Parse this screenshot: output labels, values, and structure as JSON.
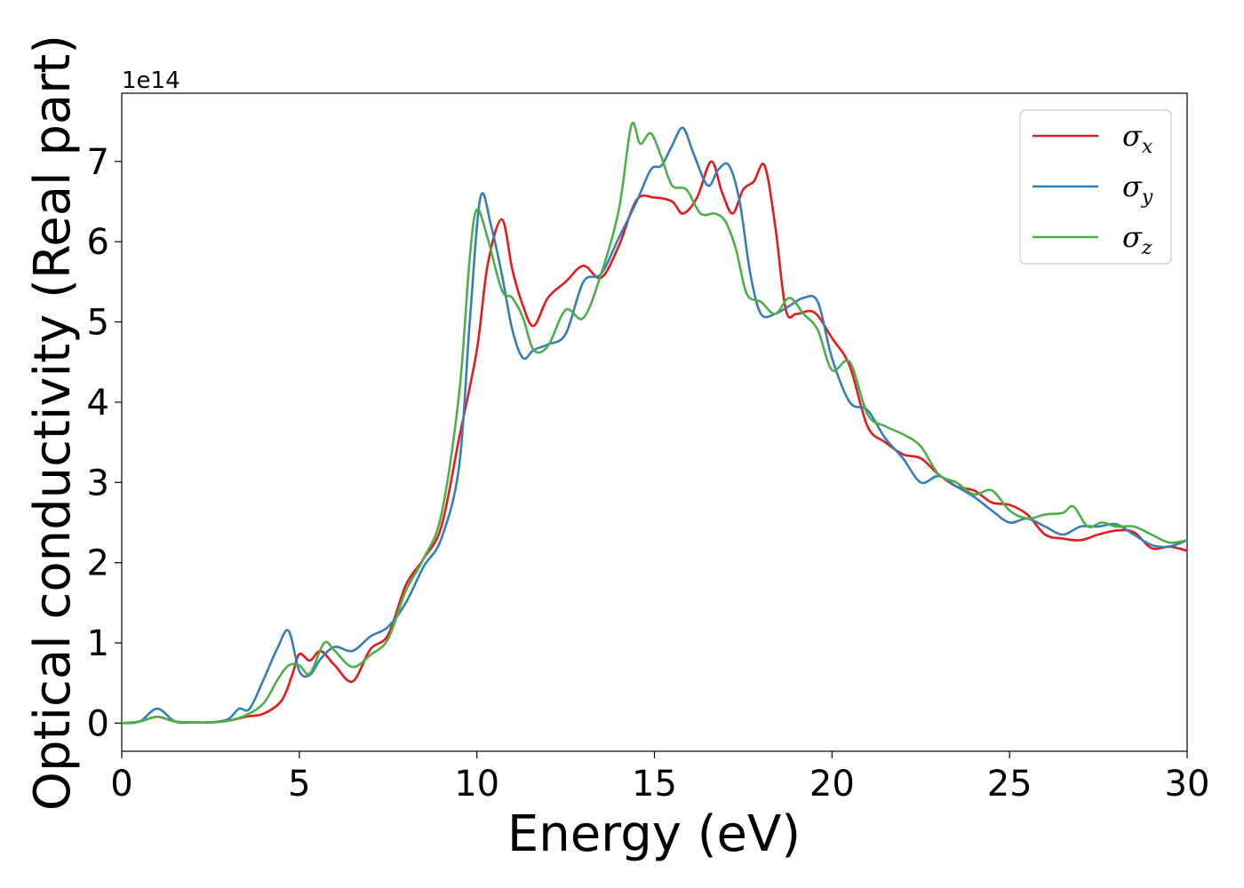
{
  "chart_data": {
    "type": "line",
    "xlabel": "Energy (eV)",
    "ylabel": "Optical conductivity (Real part)",
    "y_offset_label": "1e14",
    "xlim": [
      0,
      30
    ],
    "ylim": [
      -0.35,
      7.85
    ],
    "y_scale": 100000000000000.0,
    "x_ticks": [
      0,
      5,
      10,
      15,
      20,
      25,
      30
    ],
    "y_ticks": [
      0,
      1,
      2,
      3,
      4,
      5,
      6,
      7
    ],
    "grid": false,
    "legend_position": "top-right",
    "series": [
      {
        "name": "σx",
        "legend_symbol": "σ",
        "legend_subscript": "x",
        "color": "#e41a1c",
        "x": [
          0,
          0.5,
          1.0,
          1.5,
          2.0,
          2.5,
          3.0,
          3.5,
          4.0,
          4.5,
          4.8,
          5.0,
          5.3,
          5.6,
          6.0,
          6.5,
          7.0,
          7.5,
          8.0,
          8.5,
          9.0,
          9.5,
          10.0,
          10.3,
          10.7,
          11.0,
          11.3,
          11.6,
          12.0,
          12.5,
          13.0,
          13.5,
          14.0,
          14.5,
          15.0,
          15.5,
          15.8,
          16.2,
          16.6,
          16.9,
          17.2,
          17.5,
          17.8,
          18.1,
          18.4,
          18.7,
          19.0,
          19.5,
          20.0,
          20.5,
          21.0,
          21.5,
          22.0,
          22.5,
          23.0,
          23.5,
          24.0,
          24.5,
          25.0,
          25.5,
          26.0,
          26.5,
          27.0,
          27.5,
          28.0,
          28.5,
          29.0,
          29.5,
          30.0
        ],
        "values": [
          0.0,
          0.02,
          0.08,
          0.02,
          0.01,
          0.01,
          0.03,
          0.08,
          0.12,
          0.28,
          0.6,
          0.86,
          0.78,
          0.9,
          0.72,
          0.52,
          0.92,
          1.1,
          1.72,
          2.05,
          2.45,
          3.55,
          4.65,
          5.7,
          6.28,
          5.65,
          5.2,
          4.95,
          5.3,
          5.5,
          5.7,
          5.55,
          5.95,
          6.52,
          6.55,
          6.5,
          6.35,
          6.55,
          7.0,
          6.62,
          6.35,
          6.65,
          6.75,
          6.95,
          6.2,
          5.15,
          5.1,
          5.12,
          4.8,
          4.45,
          3.7,
          3.5,
          3.35,
          3.3,
          3.1,
          2.95,
          2.9,
          2.75,
          2.72,
          2.6,
          2.35,
          2.3,
          2.28,
          2.35,
          2.4,
          2.38,
          2.18,
          2.2,
          2.15
        ]
      },
      {
        "name": "σy",
        "legend_symbol": "σ",
        "legend_subscript": "y",
        "color": "#377eb8",
        "x": [
          0,
          0.5,
          1.0,
          1.5,
          2.0,
          2.5,
          3.0,
          3.3,
          3.6,
          4.0,
          4.4,
          4.7,
          5.0,
          5.3,
          5.6,
          6.0,
          6.5,
          7.0,
          7.5,
          8.0,
          8.5,
          9.0,
          9.5,
          9.8,
          10.1,
          10.4,
          10.7,
          11.0,
          11.3,
          11.6,
          12.0,
          12.5,
          13.0,
          13.5,
          14.0,
          14.5,
          14.9,
          15.2,
          15.5,
          15.8,
          16.1,
          16.5,
          16.8,
          17.1,
          17.4,
          17.7,
          18.0,
          18.4,
          18.8,
          19.2,
          19.6,
          20.0,
          20.5,
          21.0,
          21.5,
          22.0,
          22.5,
          23.0,
          23.5,
          24.0,
          24.5,
          25.0,
          25.5,
          26.0,
          26.5,
          27.0,
          27.5,
          28.0,
          28.5,
          29.0,
          29.5,
          30.0
        ],
        "values": [
          0.0,
          0.02,
          0.18,
          0.02,
          0.01,
          0.01,
          0.05,
          0.18,
          0.18,
          0.55,
          0.95,
          1.15,
          0.65,
          0.6,
          0.8,
          0.95,
          0.9,
          1.08,
          1.2,
          1.5,
          1.95,
          2.3,
          3.2,
          5.0,
          6.55,
          6.2,
          5.6,
          4.9,
          4.55,
          4.65,
          4.72,
          4.85,
          5.5,
          5.6,
          6.05,
          6.5,
          6.9,
          6.95,
          7.2,
          7.42,
          7.1,
          6.7,
          6.9,
          6.95,
          6.5,
          5.6,
          5.1,
          5.1,
          5.2,
          5.3,
          5.25,
          4.55,
          4.0,
          3.9,
          3.55,
          3.3,
          3.0,
          3.08,
          2.95,
          2.82,
          2.65,
          2.5,
          2.55,
          2.45,
          2.35,
          2.45,
          2.45,
          2.48,
          2.35,
          2.22,
          2.2,
          2.28
        ]
      },
      {
        "name": "σz",
        "legend_symbol": "σ",
        "legend_subscript": "z",
        "color": "#4daf4a",
        "x": [
          0,
          0.5,
          1.0,
          1.5,
          2.0,
          2.5,
          3.0,
          3.5,
          4.0,
          4.4,
          4.7,
          5.0,
          5.3,
          5.7,
          6.0,
          6.5,
          7.0,
          7.5,
          8.0,
          8.5,
          9.0,
          9.5,
          9.8,
          10.0,
          10.3,
          10.7,
          11.0,
          11.3,
          11.6,
          12.0,
          12.5,
          13.0,
          13.5,
          14.0,
          14.35,
          14.6,
          14.9,
          15.2,
          15.5,
          15.9,
          16.3,
          16.7,
          17.0,
          17.3,
          17.6,
          18.0,
          18.4,
          18.8,
          19.2,
          19.6,
          20.0,
          20.5,
          21.0,
          21.5,
          22.0,
          22.5,
          23.0,
          23.5,
          24.0,
          24.5,
          25.0,
          25.5,
          26.0,
          26.5,
          26.8,
          27.2,
          27.6,
          28.0,
          28.5,
          29.0,
          29.5,
          30.0
        ],
        "values": [
          0.0,
          0.02,
          0.08,
          0.02,
          0.01,
          0.01,
          0.03,
          0.1,
          0.25,
          0.55,
          0.72,
          0.72,
          0.62,
          1.0,
          0.9,
          0.7,
          0.85,
          1.05,
          1.65,
          2.05,
          2.6,
          4.1,
          5.8,
          6.4,
          6.05,
          5.4,
          5.3,
          5.05,
          4.65,
          4.7,
          5.15,
          5.05,
          5.6,
          6.4,
          7.45,
          7.22,
          7.35,
          7.05,
          6.7,
          6.65,
          6.35,
          6.35,
          6.25,
          5.9,
          5.35,
          5.25,
          5.1,
          5.3,
          5.1,
          4.9,
          4.4,
          4.5,
          3.85,
          3.7,
          3.6,
          3.45,
          3.1,
          3.0,
          2.85,
          2.9,
          2.65,
          2.55,
          2.6,
          2.62,
          2.7,
          2.45,
          2.5,
          2.45,
          2.45,
          2.35,
          2.25,
          2.28
        ]
      }
    ]
  }
}
